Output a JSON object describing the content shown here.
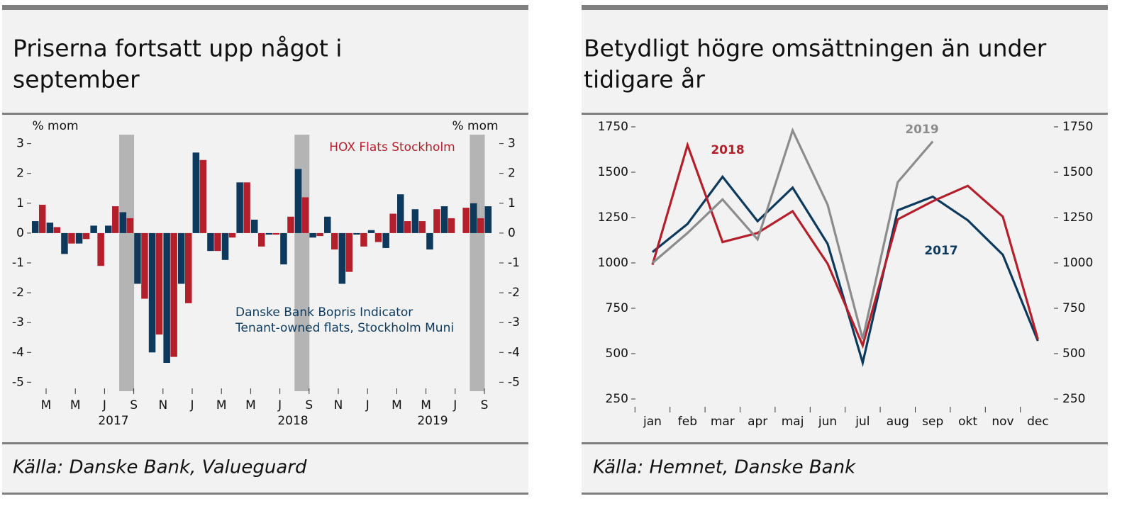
{
  "chart_data": [
    {
      "type": "bar",
      "title": [
        "Priserna fortsatt upp något i",
        "september"
      ],
      "source": "Källa: Danske Bank, Valueguard",
      "ylabel": "% mom",
      "y2label": "% mom",
      "categories": [
        "M",
        null,
        "M",
        null,
        "J",
        null,
        "S",
        null,
        "N",
        null,
        "J",
        null,
        "M",
        null,
        "M",
        null,
        "J",
        null,
        "S",
        null,
        "N",
        null,
        "J",
        null,
        "M",
        null,
        "M",
        null,
        "J",
        null,
        "S",
        null
      ],
      "years": [
        "2017",
        "2018",
        "2019"
      ],
      "shaded": [
        6,
        18,
        30
      ],
      "series": [
        {
          "name": "Danske Bank Bopris Indicator",
          "name_line2": "Tenant-owned flats, Stockholm Muni",
          "color": "#0d3a5c",
          "values": [
            0.4,
            0.35,
            -0.7,
            -0.35,
            0.25,
            0.25,
            0.7,
            -1.7,
            -4.0,
            -4.35,
            -1.7,
            2.7,
            -0.6,
            -0.9,
            1.7,
            0.45,
            -0.05,
            -1.05,
            2.15,
            -0.15,
            0.55,
            -1.7,
            -0.05,
            0.1,
            -0.5,
            1.3,
            0.8,
            -0.55,
            0.9,
            null,
            1.0,
            0.9
          ]
        },
        {
          "name": "HOX Flats Stockholm",
          "color": "#b3202c",
          "values": [
            0.95,
            0.2,
            -0.35,
            -0.2,
            -1.1,
            0.9,
            0.5,
            -2.2,
            -3.4,
            -4.15,
            -2.35,
            2.45,
            -0.6,
            -0.15,
            1.7,
            -0.45,
            -0.05,
            0.55,
            1.2,
            -0.1,
            -0.55,
            -1.3,
            -0.45,
            -0.3,
            0.65,
            0.4,
            0.4,
            0.8,
            0.5,
            0.85,
            0.5,
            null
          ]
        }
      ],
      "ylim": [
        -5.3,
        3.3
      ],
      "yticks": [
        -5,
        -4,
        -3,
        -2,
        -1,
        0,
        1,
        2,
        3
      ],
      "y2lim": [
        -5.3,
        3.3
      ],
      "y2ticks": [
        -5,
        -4,
        -3,
        -2,
        -1,
        0,
        1,
        2,
        3
      ]
    },
    {
      "type": "line",
      "title": [
        "Betydligt högre omsättningen än under",
        "tidigare år"
      ],
      "source": "Källa: Hemnet, Danske Bank",
      "categories": [
        "jan",
        "feb",
        "mar",
        "apr",
        "maj",
        "jun",
        "jul",
        "aug",
        "sep",
        "okt",
        "nov",
        "dec"
      ],
      "series": [
        {
          "name": "2017",
          "color": "#0d3a5c",
          "values": [
            1060,
            1215,
            1475,
            1230,
            1415,
            1105,
            450,
            1290,
            1365,
            1235,
            1045,
            570
          ]
        },
        {
          "name": "2018",
          "color": "#b3202c",
          "values": [
            990,
            1650,
            1115,
            1165,
            1285,
            995,
            545,
            1240,
            1340,
            1425,
            1255,
            580
          ]
        },
        {
          "name": "2019",
          "color": "#8c8c8c",
          "values": [
            1000,
            1165,
            1350,
            1130,
            1730,
            1320,
            580,
            1445,
            1670,
            null,
            null,
            null
          ]
        }
      ],
      "ylim": [
        250,
        1750
      ],
      "yticks": [
        250,
        500,
        750,
        1000,
        1250,
        1500,
        1750
      ],
      "y2lim": [
        250,
        1750
      ],
      "y2ticks": [
        250,
        500,
        750,
        1000,
        1250,
        1500,
        1750
      ]
    }
  ]
}
